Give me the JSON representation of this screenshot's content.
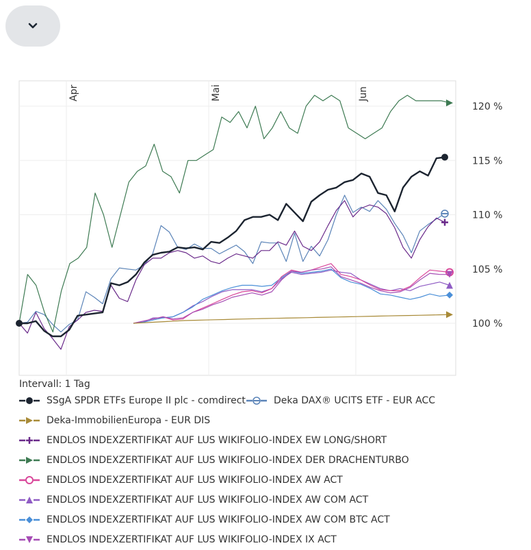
{
  "chart_data": {
    "type": "line",
    "x_ticks": [
      "Apr",
      "Mai",
      "Jun"
    ],
    "y_ticks": [
      "100 %",
      "105 %",
      "110 %",
      "115 %",
      "120 %"
    ],
    "interval_label": "Intervall: 1 Tag",
    "series": [
      {
        "name": "Deka DAX® UCITS ETF - EUR ACC",
        "color": "#5b84b8",
        "marker": "circle-half",
        "y": [
          100.0,
          100.1,
          101.1,
          100.8,
          99.9,
          99.2,
          99.9,
          100.3,
          102.9,
          102.4,
          101.8,
          104.1,
          105.1,
          105.0,
          104.9,
          105.4,
          106.4,
          109.0,
          108.4,
          107.0,
          106.8,
          107.3,
          106.9,
          106.9,
          106.4,
          106.8,
          107.2,
          106.6,
          105.5,
          107.5,
          107.4,
          107.4,
          105.7,
          108.3,
          105.7,
          107.1,
          106.2,
          107.7,
          110.0,
          111.8,
          110.2,
          110.7,
          110.3,
          111.3,
          110.5,
          109.2,
          108.1,
          106.5,
          108.5,
          109.1,
          109.6,
          110.1
        ]
      },
      {
        "name": "ENDLOS INDEXZERTIFIKAT AUF LUS WIKIFOLIO-INDEX EW LONG/SHORT",
        "color": "#6a2a8a",
        "marker": "plus",
        "y": [
          100.0,
          99.1,
          101.0,
          99.5,
          98.6,
          97.6,
          99.7,
          100.3,
          101.0,
          101.2,
          101.1,
          103.5,
          102.3,
          102.0,
          104.0,
          105.4,
          106.0,
          106.0,
          106.5,
          106.7,
          106.5,
          106.0,
          106.2,
          105.7,
          105.5,
          106.0,
          106.4,
          106.2,
          106.0,
          106.7,
          106.7,
          107.5,
          107.2,
          108.5,
          107.1,
          106.7,
          107.5,
          109.0,
          110.4,
          111.3,
          109.8,
          110.6,
          110.9,
          110.7,
          110.1,
          108.8,
          107.0,
          106.0,
          107.7,
          108.9,
          109.7,
          109.3
        ]
      },
      {
        "name": "ENDLOS INDEXZERTIFIKAT AUF LUS WIKIFOLIO-INDEX DER DRACHENTURBO",
        "color": "#3d7a52",
        "marker": "arrow",
        "y": [
          100.0,
          104.5,
          103.5,
          101.0,
          99.2,
          103.0,
          105.5,
          106.0,
          107.0,
          112.0,
          110.0,
          107.0,
          110.0,
          113.0,
          114.0,
          114.5,
          116.5,
          114.0,
          113.5,
          112.0,
          115.0,
          115.0,
          115.5,
          116.0,
          119.0,
          118.5,
          119.5,
          118.0,
          120.0,
          117.0,
          118.0,
          119.5,
          118.0,
          117.5,
          120.0,
          121.0,
          120.5,
          121.0,
          120.5,
          118.0,
          117.5,
          117.0,
          117.5,
          118.0,
          119.5,
          120.5,
          121.0,
          120.5,
          120.5,
          120.5,
          120.5,
          120.3
        ]
      },
      {
        "name": "ENDLOS INDEXZERTIFIKAT AUF LUS WIKIFOLIO-INDEX AW COM ACT",
        "color": "#8f5cc4",
        "marker": "triangle-up",
        "y": [
          100.0,
          100.1,
          100.5,
          100.5,
          100.6,
          101.0,
          101.6,
          102.0,
          102.5,
          102.9,
          103.1,
          103.1,
          103.1,
          102.9,
          103.2,
          104.1,
          104.7,
          104.5,
          104.6,
          104.7,
          104.9,
          104.7,
          104.6,
          104.0,
          103.6,
          103.2,
          103.0,
          103.2,
          103.0,
          103.4,
          103.6,
          103.8,
          103.5
        ]
      },
      {
        "name": "ENDLOS INDEXZERTIFIKAT AUF LUS WIKIFOLIO-INDEX AW COM BTC ACT",
        "color": "#4a8fd8",
        "marker": "diamond",
        "y": [
          100.0,
          100.1,
          100.3,
          100.5,
          100.6,
          101.0,
          101.5,
          102.2,
          102.6,
          103.0,
          103.3,
          103.5,
          103.5,
          103.4,
          103.5,
          104.2,
          104.8,
          104.6,
          104.7,
          104.8,
          105.0,
          104.2,
          103.8,
          103.6,
          103.2,
          102.7,
          102.6,
          102.4,
          102.2,
          102.4,
          102.7,
          102.5,
          102.6
        ]
      },
      {
        "name": "ENDLOS INDEXZERTIFIKAT AUF LUS WIKIFOLIO-INDEX AW ACT",
        "color": "#d9479a",
        "marker": "circle-open",
        "y": [
          100.0,
          100.2,
          100.4,
          100.6,
          100.3,
          100.4,
          101.0,
          101.4,
          101.8,
          102.2,
          102.6,
          102.9,
          103.0,
          102.8,
          103.2,
          104.3,
          104.9,
          104.7,
          104.9,
          105.2,
          105.5,
          104.5,
          104.3,
          104.0,
          103.5,
          103.1,
          103.0,
          103.0,
          103.4,
          104.2,
          104.9,
          104.8,
          104.7
        ]
      },
      {
        "name": "ENDLOS INDEXZERTIFIKAT AUF LUS WIKIFOLIO-INDEX IX ACT",
        "color": "#a64db5",
        "marker": "triangle-down",
        "y": [
          100.0,
          100.2,
          100.4,
          100.6,
          100.4,
          100.5,
          101.0,
          101.3,
          101.7,
          102.0,
          102.4,
          102.6,
          102.8,
          102.6,
          102.9,
          104.0,
          104.8,
          104.7,
          104.9,
          105.0,
          105.2,
          104.3,
          104.0,
          103.7,
          103.3,
          103.0,
          102.8,
          102.9,
          103.3,
          104.0,
          104.6,
          104.5,
          104.5
        ]
      },
      {
        "name": "Deka-ImmobilienEuropa - EUR DIS",
        "color": "#a88a37",
        "marker": "arrow",
        "y": [
          100.0,
          100.05,
          100.1,
          100.15,
          100.2,
          100.25,
          100.28,
          100.3,
          100.33,
          100.35,
          100.38,
          100.4,
          100.42,
          100.44,
          100.46,
          100.48,
          100.5,
          100.52,
          100.54,
          100.56,
          100.58,
          100.6,
          100.62,
          100.64,
          100.66,
          100.68,
          100.7,
          100.72,
          100.74,
          100.76,
          100.78,
          100.8
        ]
      },
      {
        "name": "SSgA SPDR ETFs Europe II plc - comdirect",
        "color": "#1c2430",
        "marker": "circle",
        "y": [
          100.0,
          100.0,
          100.2,
          99.3,
          98.8,
          98.8,
          99.4,
          100.7,
          100.8,
          100.9,
          101.0,
          103.7,
          103.5,
          103.8,
          104.5,
          105.6,
          106.3,
          106.5,
          106.6,
          107.0,
          106.9,
          107.0,
          106.8,
          107.5,
          107.4,
          107.9,
          108.5,
          109.5,
          109.8,
          109.8,
          110.0,
          109.5,
          111.0,
          110.2,
          109.4,
          111.2,
          111.8,
          112.3,
          112.5,
          113.0,
          113.2,
          113.8,
          113.5,
          112.0,
          111.8,
          110.3,
          112.5,
          113.5,
          114.0,
          113.6,
          115.2,
          115.3
        ]
      }
    ],
    "legend": [
      {
        "name": "SSgA SPDR ETFs Europe II plc - comdirect",
        "color": "#1c2430",
        "marker": "circle"
      },
      {
        "name": "Deka DAX® UCITS ETF - EUR ACC",
        "color": "#5b84b8",
        "marker": "circle-half"
      },
      {
        "name": "Deka-ImmobilienEuropa - EUR DIS",
        "color": "#a88a37",
        "marker": "arrow"
      },
      {
        "name": "ENDLOS INDEXZERTIFIKAT AUF LUS WIKIFOLIO-INDEX EW LONG/SHORT",
        "color": "#6a2a8a",
        "marker": "plus"
      },
      {
        "name": "ENDLOS INDEXZERTIFIKAT AUF LUS WIKIFOLIO-INDEX DER DRACHENTURBO",
        "color": "#3d7a52",
        "marker": "arrow"
      },
      {
        "name": "ENDLOS INDEXZERTIFIKAT AUF LUS WIKIFOLIO-INDEX AW ACT",
        "color": "#d9479a",
        "marker": "circle-open"
      },
      {
        "name": "ENDLOS INDEXZERTIFIKAT AUF LUS WIKIFOLIO-INDEX AW COM ACT",
        "color": "#8f5cc4",
        "marker": "triangle-up"
      },
      {
        "name": "ENDLOS INDEXZERTIFIKAT AUF LUS WIKIFOLIO-INDEX AW COM BTC ACT",
        "color": "#4a8fd8",
        "marker": "diamond"
      },
      {
        "name": "ENDLOS INDEXZERTIFIKAT AUF LUS WIKIFOLIO-INDEX IX ACT",
        "color": "#a64db5",
        "marker": "triangle-down"
      }
    ],
    "grid": true,
    "legend_placement": "bottom"
  },
  "toggle": {
    "icon": "chevron-down-icon"
  }
}
